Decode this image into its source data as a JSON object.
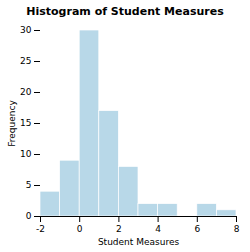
{
  "chart_data": {
    "type": "histogram",
    "title": "Histogram of Student Measures",
    "xlabel": "Student Measures",
    "ylabel": "Frequency",
    "bins": [
      -2,
      -1,
      0,
      1,
      2,
      3,
      4,
      5,
      6,
      7,
      8
    ],
    "values": [
      4,
      9,
      30,
      17,
      8,
      2,
      2,
      0,
      2,
      1
    ],
    "color": "#b8d8e8",
    "xlim": [
      -2,
      8
    ],
    "ylim": [
      0,
      30
    ],
    "xticks": [
      -2,
      0,
      2,
      4,
      6,
      8
    ],
    "yticks": [
      0,
      5,
      10,
      15,
      20,
      25,
      30
    ],
    "grid": false
  }
}
